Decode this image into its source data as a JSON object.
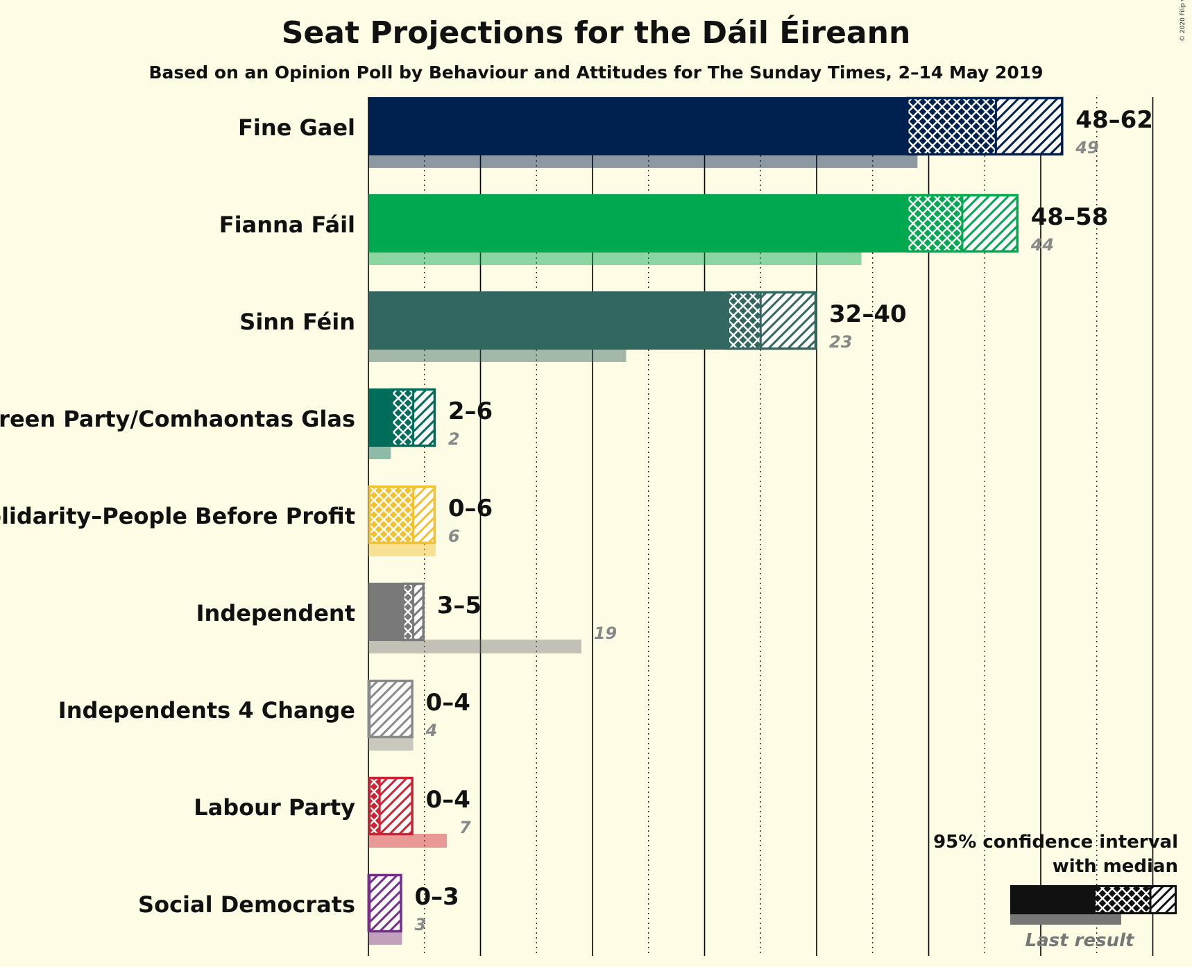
{
  "title": "Seat Projections for the Dáil Éireann",
  "subtitle": "Based on an Opinion Poll by Behaviour and Attitudes for The Sunday Times, 2–14 May 2019",
  "copyright": "© 2020 Filip van Laenen",
  "legend": {
    "line1": "95% confidence interval",
    "line2": "with median",
    "last_result": "Last result"
  },
  "chart_data": {
    "type": "bar",
    "title": "Seat Projections for the Dáil Éireann",
    "subtitle": "Based on an Opinion Poll by Behaviour and Attitudes for The Sunday Times, 2–14 May 2019",
    "xlim": [
      0,
      70
    ],
    "gridlines_every": 5,
    "categories": [
      "Fine Gael",
      "Fianna Fáil",
      "Sinn Féin",
      "Green Party/Comhaontas Glas",
      "Solidarity–People Before Profit",
      "Independent",
      "Independents 4 Change",
      "Labour Party",
      "Social Democrats"
    ],
    "parties": [
      {
        "name": "Fine Gael",
        "color": "#00204F",
        "low": 48,
        "median": 56,
        "high": 62,
        "last": 49,
        "range_label": "48–62",
        "last_label": "49"
      },
      {
        "name": "Fianna Fáil",
        "color": "#00A94F",
        "low": 48,
        "median": 53,
        "high": 58,
        "last": 44,
        "range_label": "48–58",
        "last_label": "44"
      },
      {
        "name": "Sinn Féin",
        "color": "#326760",
        "low": 32,
        "median": 35,
        "high": 40,
        "last": 23,
        "range_label": "32–40",
        "last_label": "23"
      },
      {
        "name": "Green Party/Comhaontas Glas",
        "color": "#006D5B",
        "low": 2,
        "median": 4,
        "high": 6,
        "last": 2,
        "range_label": "2–6",
        "last_label": "2"
      },
      {
        "name": "Solidarity–People Before Profit",
        "color": "#F2C12E",
        "low": 0,
        "median": 4,
        "high": 6,
        "last": 6,
        "range_label": "0–6",
        "last_label": "6"
      },
      {
        "name": "Independent",
        "color": "#797979",
        "low": 3,
        "median": 4,
        "high": 5,
        "last": 19,
        "range_label": "3–5",
        "last_label": "19"
      },
      {
        "name": "Independents 4 Change",
        "color": "#8A8A8A",
        "low": 0,
        "median": 0,
        "high": 4,
        "last": 4,
        "range_label": "0–4",
        "last_label": "4"
      },
      {
        "name": "Labour Party",
        "color": "#CC2233",
        "low": 0,
        "median": 1,
        "high": 4,
        "last": 7,
        "range_label": "0–4",
        "last_label": "7"
      },
      {
        "name": "Social Democrats",
        "color": "#752F8B",
        "low": 0,
        "median": 0,
        "high": 3,
        "last": 3,
        "range_label": "0–3",
        "last_label": "3"
      }
    ]
  }
}
